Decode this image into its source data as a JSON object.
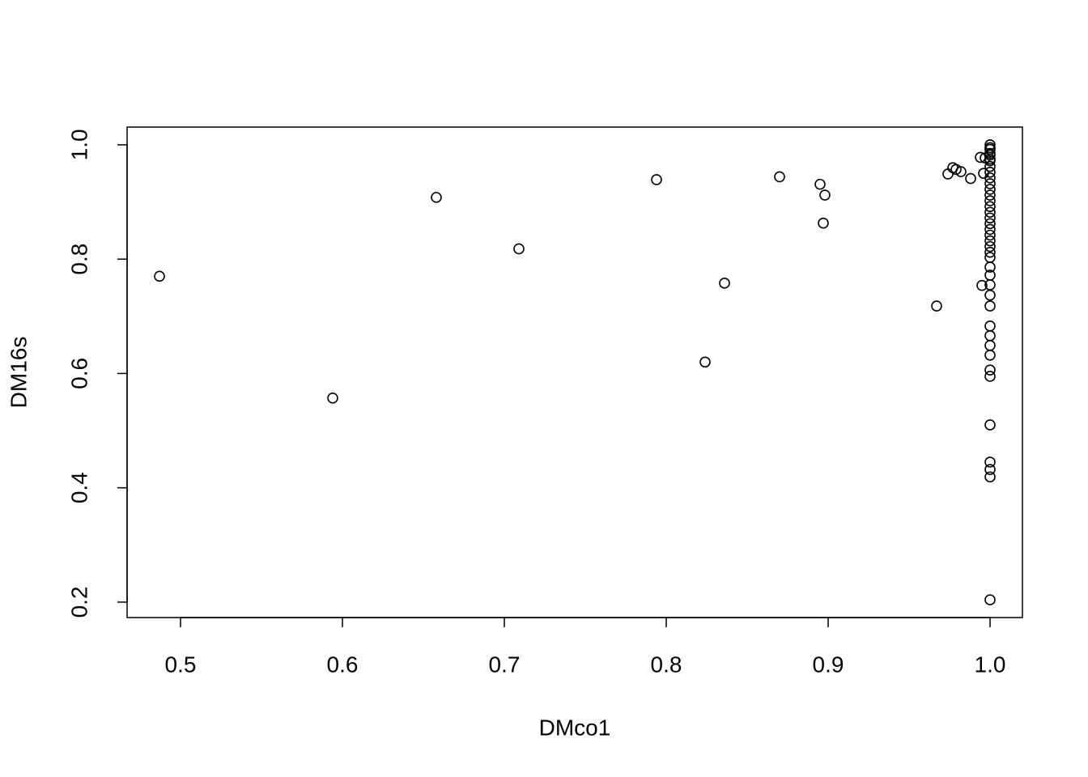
{
  "chart_data": {
    "type": "scatter",
    "x_label": "DMco1",
    "y_label": "DM16s",
    "x": [
      0.487,
      0.594,
      0.658,
      0.709,
      0.794,
      0.824,
      0.836,
      0.87,
      0.895,
      0.897,
      0.898,
      0.967,
      0.974,
      0.977,
      0.979,
      0.982,
      0.988,
      0.994,
      0.995,
      0.996,
      0.997,
      1,
      1,
      1,
      1,
      1,
      1,
      1,
      1,
      1,
      1,
      1,
      1,
      1,
      1,
      1,
      1,
      1,
      1,
      1,
      1,
      1,
      1,
      1,
      1,
      1,
      1,
      1,
      1,
      1,
      1,
      1,
      1,
      1,
      1,
      1,
      1,
      1,
      1,
      1,
      1
    ],
    "values": [
      0.77,
      0.557,
      0.908,
      0.818,
      0.939,
      0.62,
      0.758,
      0.944,
      0.931,
      0.863,
      0.912,
      0.718,
      0.949,
      0.96,
      0.957,
      0.953,
      0.941,
      0.978,
      0.754,
      0.95,
      0.977,
      0.204,
      0.419,
      0.432,
      0.445,
      0.51,
      0.595,
      0.606,
      0.632,
      0.649,
      0.666,
      0.683,
      0.718,
      0.737,
      0.755,
      0.772,
      0.786,
      0.803,
      0.812,
      0.822,
      0.832,
      0.842,
      0.852,
      0.862,
      0.872,
      0.882,
      0.892,
      0.902,
      0.912,
      0.922,
      0.932,
      0.942,
      0.952,
      0.962,
      0.972,
      0.982,
      0.992,
      1.0,
      0.995,
      0.985,
      0.975
    ],
    "color": "#000000",
    "xlim": [
      0.467,
      1.02
    ],
    "ylim": [
      0.173,
      1.031
    ],
    "xticks": [
      0.5,
      0.6,
      0.7,
      0.8,
      0.9,
      {
        "value": 1,
        "label": "1.0"
      }
    ],
    "yticks": [
      0.2,
      0.4,
      0.6,
      0.8,
      {
        "value": 1,
        "label": "1.0"
      }
    ]
  }
}
